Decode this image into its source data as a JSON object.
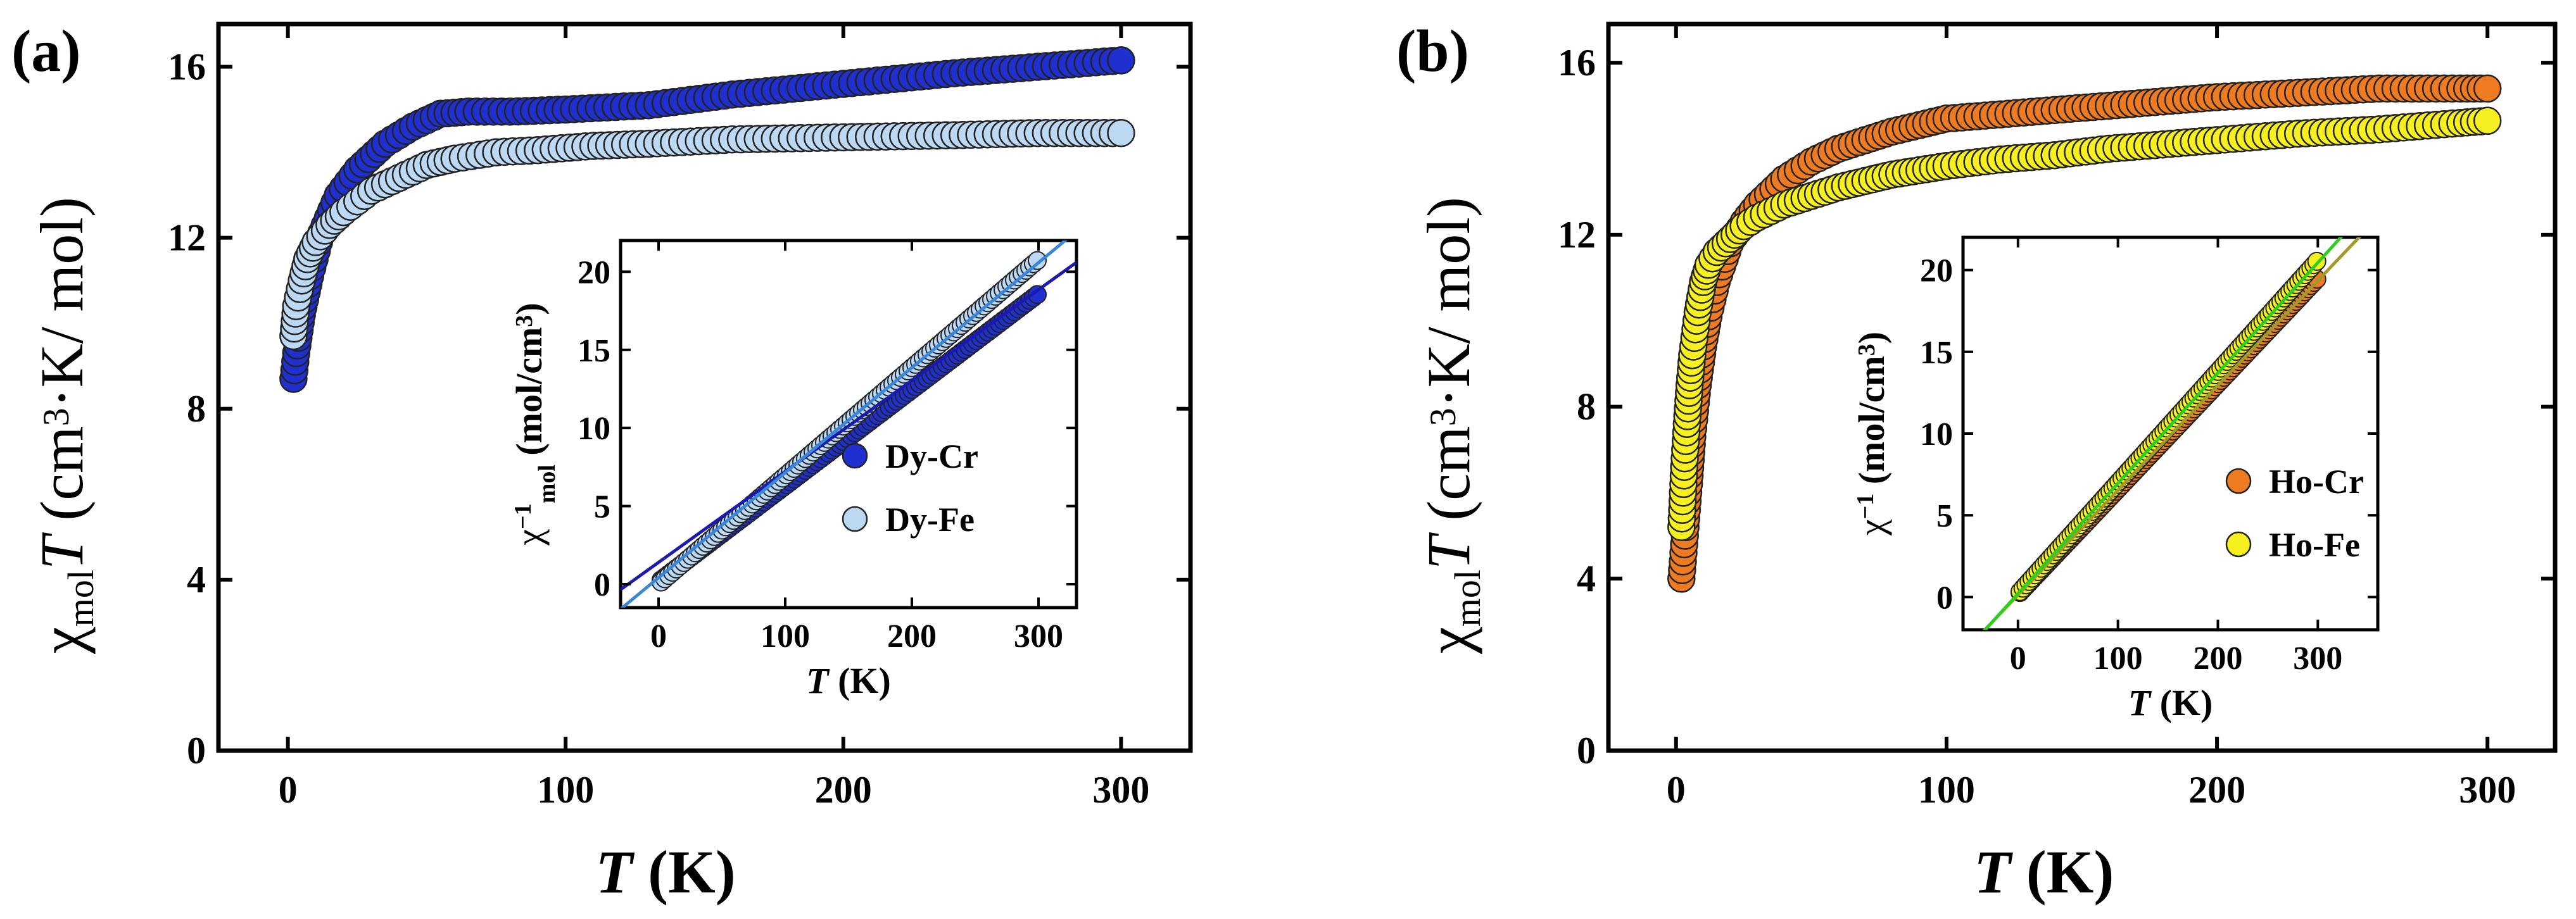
{
  "chart_data": [
    {
      "panel_label": "(a)",
      "type": "scatter",
      "xlabel": {
        "italic": "T",
        "unit": " (K)"
      },
      "ylabel": {
        "main": "χ",
        "sub": "mol",
        "italic": "T",
        "unit_prefix": " (cm",
        "unit_sup": "3",
        "unit_suffix": "·K/ mol)"
      },
      "xlim": [
        -25,
        325
      ],
      "ylim": [
        0,
        17
      ],
      "xticks": [
        0,
        100,
        200,
        300
      ],
      "xtick_labels": [
        "0",
        "100",
        "200",
        "300"
      ],
      "yticks": [
        0,
        4,
        8,
        12,
        16
      ],
      "ytick_labels": [
        "0",
        "4",
        "8",
        "12",
        "16"
      ],
      "series": [
        {
          "name": "Dy-Cr",
          "color": "#1f2fd0",
          "x": [
            2,
            3,
            5,
            8,
            12,
            18,
            25,
            35,
            45,
            55,
            65,
            80,
            100,
            130,
            160,
            200,
            240,
            270,
            300
          ],
          "y": [
            8.7,
            9.3,
            10.2,
            11.1,
            12.1,
            13.0,
            13.6,
            14.2,
            14.6,
            14.9,
            14.95,
            14.95,
            15.0,
            15.1,
            15.35,
            15.6,
            15.85,
            16.0,
            16.15
          ]
        },
        {
          "name": "Dy-Fe",
          "color": "#bcd8f3",
          "x": [
            2,
            3,
            5,
            7,
            10,
            15,
            20,
            30,
            40,
            50,
            60,
            75,
            90,
            110,
            130,
            160,
            200,
            240,
            270,
            300
          ],
          "y": [
            9.7,
            10.4,
            11.0,
            11.5,
            11.9,
            12.3,
            12.6,
            13.1,
            13.4,
            13.7,
            13.85,
            14.0,
            14.05,
            14.15,
            14.2,
            14.3,
            14.35,
            14.4,
            14.45,
            14.45
          ]
        }
      ],
      "inset": {
        "type": "scatter",
        "xlabel": {
          "italic": "T",
          "unit": " (K)"
        },
        "ylabel": {
          "main": "χ",
          "sup": "−1",
          "sub": "mol",
          "unit": " (mol/cm",
          "unit_sup": "3",
          "unit_end": ")"
        },
        "xlim": [
          -30,
          330
        ],
        "ylim": [
          -1.5,
          22
        ],
        "xticks": [
          0,
          100,
          200,
          300
        ],
        "xtick_labels": [
          "0",
          "100",
          "200",
          "300"
        ],
        "yticks": [
          0,
          5,
          10,
          15,
          20
        ],
        "ytick_labels": [
          "0",
          "5",
          "10",
          "15",
          "20"
        ],
        "series": [
          {
            "name": "Dy-Cr",
            "color": "#1f2fd0",
            "x_start": 2,
            "x_end": 300,
            "slope": 0.0615,
            "intercept": 0.15
          },
          {
            "name": "Dy-Fe",
            "color": "#bcd8f3",
            "x_start": 2,
            "x_end": 300,
            "slope": 0.0693,
            "intercept": 0.0
          }
        ],
        "fit_lines": [
          {
            "name": "Dy-Cr fit",
            "color": "#1a1ab0",
            "x": [
              -30,
              330
            ],
            "y": [
              -0.35,
              20.6
            ]
          },
          {
            "name": "Dy-Fe fit",
            "color": "#3a86d8",
            "x": [
              -30,
              330
            ],
            "y": [
              -1.6,
              22.6
            ]
          }
        ]
      }
    },
    {
      "panel_label": "(b)",
      "type": "scatter",
      "xlabel": {
        "italic": "T",
        "unit": " (K)"
      },
      "ylabel": {
        "main": "χ",
        "sub": "mol",
        "italic": "T",
        "unit_prefix": " (cm",
        "unit_sup": "3",
        "unit_suffix": "·K/ mol)"
      },
      "xlim": [
        -25,
        325
      ],
      "ylim": [
        0,
        16.9
      ],
      "xticks": [
        0,
        100,
        200,
        300
      ],
      "xtick_labels": [
        "0",
        "100",
        "200",
        "300"
      ],
      "yticks": [
        0,
        4,
        8,
        12,
        16
      ],
      "ytick_labels": [
        "0",
        "4",
        "8",
        "12",
        "16"
      ],
      "series": [
        {
          "name": "Ho-Cr",
          "color": "#ee7b22",
          "x": [
            2,
            3,
            4,
            5,
            6,
            8,
            10,
            12,
            15,
            20,
            25,
            30,
            40,
            50,
            60,
            70,
            80,
            90,
            100,
            120,
            140,
            160,
            180,
            200,
            230,
            260,
            290,
            300
          ],
          "y": [
            4.0,
            4.8,
            5.6,
            6.4,
            7.3,
            8.5,
            9.4,
            10.1,
            10.9,
            11.8,
            12.3,
            12.7,
            13.3,
            13.7,
            14.0,
            14.2,
            14.4,
            14.55,
            14.7,
            14.8,
            14.9,
            15.0,
            15.1,
            15.2,
            15.3,
            15.4,
            15.4,
            15.4
          ]
        },
        {
          "name": "Ho-Fe",
          "color": "#f6f020",
          "x": [
            2,
            3,
            4,
            5,
            6,
            8,
            10,
            12,
            15,
            20,
            25,
            30,
            40,
            50,
            60,
            70,
            80,
            90,
            100,
            120,
            140,
            160,
            180,
            200,
            230,
            260,
            290,
            300
          ],
          "y": [
            5.2,
            6.6,
            7.6,
            8.5,
            9.2,
            10.2,
            10.9,
            11.3,
            11.6,
            11.9,
            12.2,
            12.4,
            12.7,
            12.9,
            13.1,
            13.25,
            13.4,
            13.5,
            13.6,
            13.75,
            13.85,
            14.0,
            14.1,
            14.2,
            14.35,
            14.45,
            14.6,
            14.65
          ]
        }
      ],
      "inset": {
        "type": "scatter",
        "xlabel": {
          "italic": "T",
          "unit": " (K)"
        },
        "ylabel": {
          "main": "χ",
          "sup": "−1",
          "sub": "",
          "unit": " (mol/cm",
          "unit_sup": "3",
          "unit_end": ")"
        },
        "xlim": [
          -55,
          360
        ],
        "ylim": [
          -2,
          22
        ],
        "xticks": [
          0,
          100,
          200,
          300
        ],
        "xtick_labels": [
          "0",
          "100",
          "200",
          "300"
        ],
        "yticks": [
          0,
          5,
          10,
          15,
          20
        ],
        "ytick_labels": [
          "0",
          "5",
          "10",
          "15",
          "20"
        ],
        "series": [
          {
            "name": "Ho-Cr",
            "color": "#ee7b22",
            "x_start": 2,
            "x_end": 300,
            "slope": 0.0645,
            "intercept": 0.15
          },
          {
            "name": "Ho-Fe",
            "color": "#f6f020",
            "x_start": 2,
            "x_end": 300,
            "slope": 0.068,
            "intercept": 0.2
          }
        ],
        "fit_lines": [
          {
            "name": "Ho-Cr fit",
            "color": "#a39a2b",
            "x": [
              -55,
              360
            ],
            "y": [
              -3.4,
              23.2
            ]
          },
          {
            "name": "Ho-Fe fit",
            "color": "#2ccf1e",
            "x": [
              -55,
              360
            ],
            "y": [
              -3.5,
              24.5
            ]
          }
        ]
      }
    }
  ]
}
